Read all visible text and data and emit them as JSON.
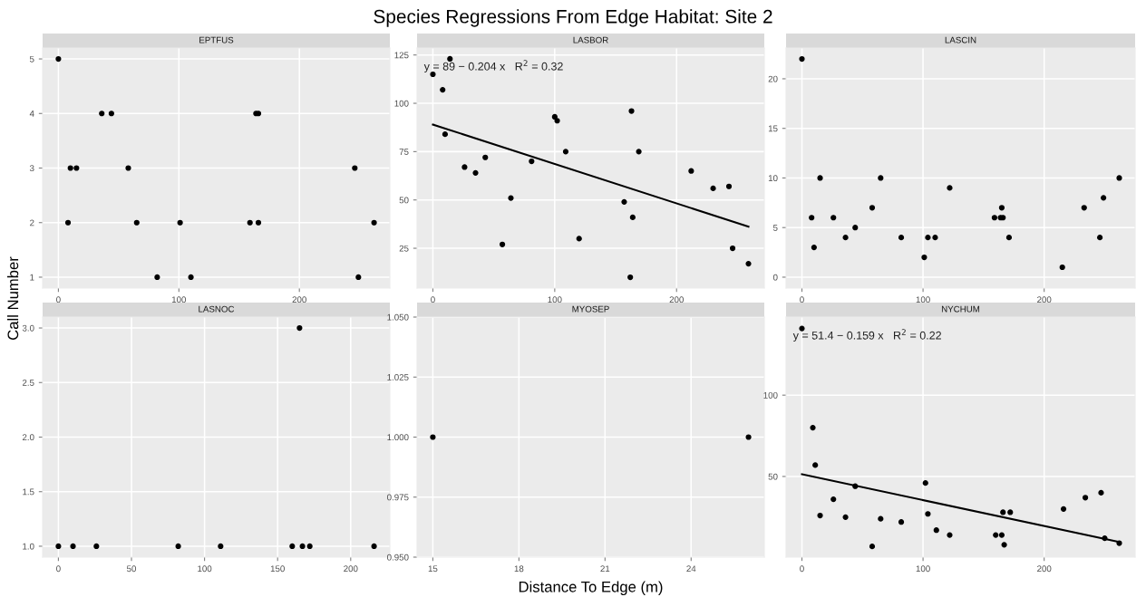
{
  "chart_data": [
    {
      "type": "scatter",
      "title": "EPTFUS",
      "annotations": [
        "Species Regressions From Edge Habitat: Site 2"
      ],
      "ylabel": "Call Number",
      "x": [
        0,
        8,
        10,
        15,
        36,
        44,
        58,
        65,
        82,
        101,
        110,
        159,
        164,
        166,
        166,
        246,
        249,
        262
      ],
      "series": [
        {
          "color": "#000000",
          "marker": "circle",
          "values": [
            5,
            2,
            3,
            3,
            4,
            4,
            3,
            2,
            1,
            2,
            1,
            2,
            4,
            4,
            2,
            3,
            1,
            2
          ]
        }
      ],
      "xlim": [
        -13.1,
        275.1
      ],
      "ylim": [
        0.8,
        5.2
      ],
      "xticks": [
        0,
        100,
        200
      ],
      "yticks": [
        1,
        2,
        3,
        4,
        5
      ],
      "grid": true
    },
    {
      "type": "scatter",
      "title": "LASBOR",
      "annotations": [
        "y = 89 − 0.204 x   R$^{2}$ = 0.32"
      ],
      "x": [
        0,
        8,
        10,
        14,
        26,
        35,
        43,
        57,
        64,
        81,
        100,
        102,
        109,
        120,
        157,
        162,
        163,
        164,
        169,
        212,
        230,
        243,
        246,
        259
      ],
      "series": [
        {
          "color": "#000000",
          "marker": "circle",
          "values": [
            115,
            107,
            84,
            123,
            67,
            64,
            72,
            27,
            51,
            70,
            93,
            91,
            75,
            30,
            49,
            10,
            96,
            41,
            75,
            65,
            56,
            57,
            25,
            17
          ]
        },
        {
          "type": "line",
          "color": "#000000",
          "x": [
            0,
            259
          ],
          "values": [
            89,
            36.2
          ]
        }
      ],
      "xlim": [
        -13,
        272
      ],
      "ylim": [
        4.4,
        128.6
      ],
      "xticks": [
        0,
        100,
        200
      ],
      "yticks": [
        25,
        50,
        75,
        100,
        125
      ],
      "grid": true
    },
    {
      "type": "scatter",
      "title": "LASCIN",
      "x": [
        0,
        8,
        10,
        15,
        26,
        36,
        44,
        58,
        65,
        82,
        101,
        104,
        110,
        122,
        159,
        164,
        165,
        166,
        171,
        215,
        233,
        246,
        249,
        262
      ],
      "series": [
        {
          "color": "#000000",
          "marker": "circle",
          "values": [
            22,
            6,
            3,
            10,
            6,
            4,
            5,
            7,
            10,
            4,
            2,
            4,
            4,
            9,
            6,
            6,
            7,
            6,
            4,
            1,
            7,
            4,
            8,
            10
          ]
        }
      ],
      "xlim": [
        -13.1,
        275.1
      ],
      "ylim": [
        -1.1,
        23.1
      ],
      "xticks": [
        0,
        100,
        200
      ],
      "yticks": [
        0,
        5,
        10,
        15,
        20
      ],
      "grid": true
    },
    {
      "type": "scatter",
      "title": "LASNOC",
      "x": [
        0,
        10,
        26,
        82,
        111,
        160,
        165,
        167,
        172,
        216
      ],
      "series": [
        {
          "color": "#000000",
          "marker": "circle",
          "values": [
            1,
            1,
            1,
            1,
            1,
            1,
            3,
            1,
            1,
            1
          ]
        }
      ],
      "xlim": [
        -10.8,
        226.8
      ],
      "ylim": [
        0.9,
        3.1
      ],
      "xticks": [
        0,
        50,
        100,
        150,
        200
      ],
      "yticks": [
        {
          "value": 1,
          "label": "1.0"
        },
        {
          "value": 1.5,
          "label": "1.5"
        },
        {
          "value": 2,
          "label": "2.0"
        },
        {
          "value": 2.5,
          "label": "2.5"
        },
        {
          "value": 3,
          "label": "3.0"
        }
      ],
      "grid": true
    },
    {
      "type": "scatter",
      "title": "MYOSEP",
      "xlabel": "Distance To Edge (m)",
      "x": [
        15,
        26
      ],
      "series": [
        {
          "color": "#000000",
          "marker": "circle",
          "values": [
            1,
            1
          ]
        }
      ],
      "xlim": [
        14.45,
        26.55
      ],
      "ylim": [
        0.95,
        1.05
      ],
      "xticks": [
        15,
        18,
        21,
        24
      ],
      "yticks": [
        {
          "value": 0.95,
          "label": "0.950"
        },
        {
          "value": 0.975,
          "label": "0.975"
        },
        {
          "value": 1.0,
          "label": "1.000"
        },
        {
          "value": 1.025,
          "label": "1.025"
        },
        {
          "value": 1.05,
          "label": "1.050"
        }
      ],
      "grid": true
    },
    {
      "type": "scatter",
      "title": "NYCHUM",
      "annotations": [
        "y = 51.4 − 0.159 x   R$^{2}$ = 0.22"
      ],
      "x": [
        0,
        9,
        11,
        15,
        26,
        36,
        44,
        58,
        65,
        82,
        102,
        104,
        111,
        122,
        160,
        165,
        166,
        167,
        172,
        216,
        234,
        247,
        250,
        262
      ],
      "series": [
        {
          "color": "#000000",
          "marker": "circle",
          "values": [
            141,
            80,
            57,
            26,
            36,
            25,
            44,
            7,
            24,
            22,
            46,
            27,
            17,
            14,
            14,
            14,
            28,
            8,
            28,
            30,
            37,
            40,
            12,
            9
          ]
        },
        {
          "type": "line",
          "color": "#000000",
          "x": [
            0,
            262
          ],
          "values": [
            51.4,
            9.7
          ]
        }
      ],
      "xlim": [
        -13.1,
        275.1
      ],
      "ylim": [
        0.4,
        148
      ],
      "xticks": [
        0,
        100,
        200
      ],
      "yticks": [
        50,
        100
      ],
      "grid": true
    }
  ]
}
